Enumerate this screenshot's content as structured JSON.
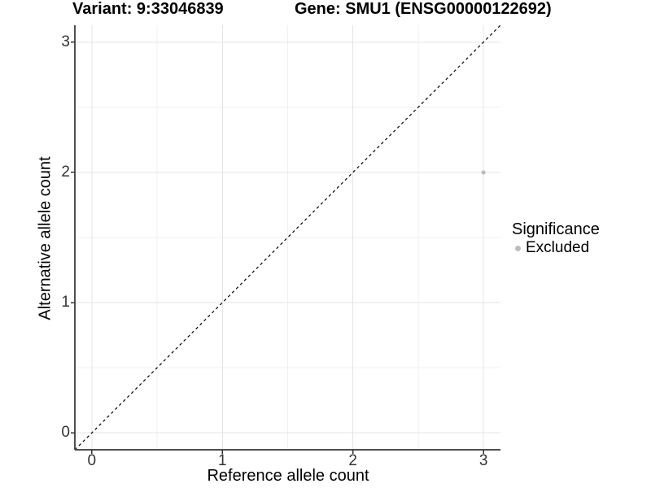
{
  "chart_data": {
    "type": "scatter",
    "title_left": "Variant: 9:33046839",
    "title_right": "Gene: SMU1 (ENSG00000122692)",
    "xlabel": "Reference allele count",
    "ylabel": "Alternative allele count",
    "xlim": [
      -0.13,
      3.13
    ],
    "ylim": [
      -0.13,
      3.13
    ],
    "xticks": [
      0,
      1,
      2,
      3
    ],
    "yticks": [
      0,
      1,
      2,
      3
    ],
    "grid": {
      "major": true,
      "minor": true
    },
    "series": [
      {
        "name": "Excluded",
        "color": "#bdbdbd",
        "point_radius": 2.6,
        "points": [
          {
            "x": 3,
            "y": 2
          }
        ]
      }
    ],
    "reference_line": {
      "type": "identity",
      "style": "dashed",
      "color": "#000000"
    },
    "legend": {
      "title": "Significance",
      "position": "right",
      "items": [
        {
          "label": "Excluded",
          "color": "#bdbdbd"
        }
      ]
    }
  },
  "colors": {
    "background": "#ffffff",
    "grid_major": "#e4e4e4",
    "grid_minor": "#f1f1f1",
    "axis_line": "#4f4f4f",
    "tick_mark": "#333333",
    "tick_label": "#333333",
    "text": "#000000"
  }
}
